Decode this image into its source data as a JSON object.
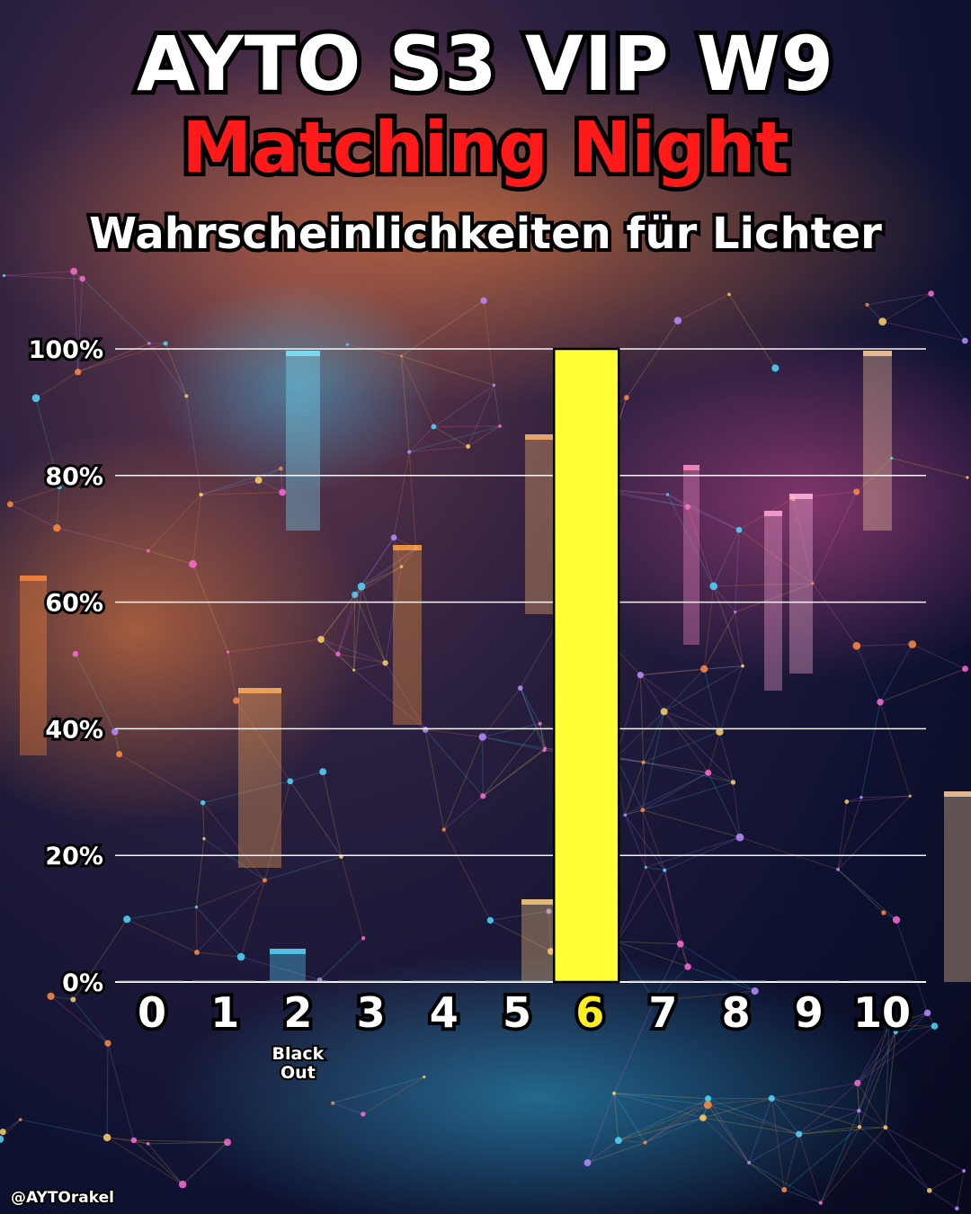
{
  "header": {
    "title": "AYTO S3 VIP W9",
    "subtitle": "Matching Night",
    "caption": "Wahrscheinlichkeiten für Lichter"
  },
  "footer": {
    "handle": "@AYTOrakel"
  },
  "colors": {
    "highlight_bar": "#ffff33",
    "empty_bar": "#9aa0b4",
    "title_red": "#ff1a1a",
    "gridline": "#ffffff"
  },
  "chart_data": {
    "type": "bar",
    "title": "Wahrscheinlichkeiten für Lichter",
    "xlabel": "",
    "ylabel": "",
    "categories": [
      "0",
      "1",
      "2",
      "3",
      "4",
      "5",
      "6",
      "7",
      "8",
      "9",
      "10"
    ],
    "values": [
      0,
      0,
      0,
      0,
      0,
      0,
      100,
      0,
      0,
      0,
      0
    ],
    "highlight_category": "6",
    "category_notes": {
      "2": [
        "Black",
        "Out"
      ]
    },
    "ylim": [
      0,
      100
    ],
    "yticks": [
      0,
      20,
      40,
      60,
      80,
      100
    ],
    "ytick_labels": [
      "0%",
      "20%",
      "40%",
      "60%",
      "80%",
      "100%"
    ],
    "grid": true,
    "legend": "none"
  }
}
